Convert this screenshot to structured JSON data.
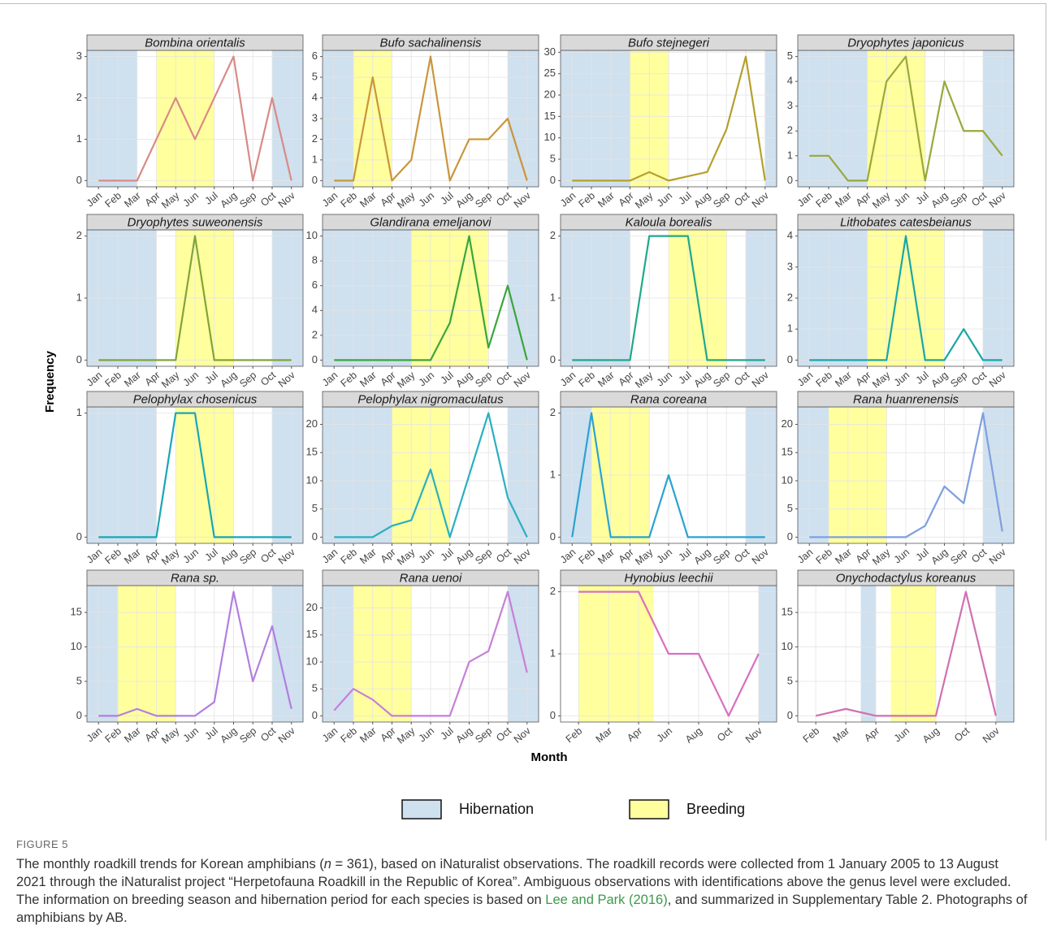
{
  "y_label": "Frequency",
  "x_label": "Month",
  "legend": [
    {
      "name": "Hibernation",
      "color": "#cfe0ef"
    },
    {
      "name": "Breeding",
      "color": "#ffff9e"
    }
  ],
  "figure_label": "FIGURE 5",
  "caption": [
    "The monthly roadkill trends for Korean amphibians (",
    "n",
    " = 361), based on iNaturalist observations. The roadkill records were collected from 1 January 2005 to 13 August 2021 through the iNaturalist project “Herpetofauna Roadkill in the Republic of Korea”. Ambiguous observations with identifications above the genus level were excluded. The information on breeding season and hibernation period for each species is based on ",
    "Lee and Park (2016)",
    ", and summarized in Supplementary Table 2. Photographs of amphibians by AB."
  ],
  "chart_data": [
    {
      "type": "line",
      "title": "Bombina orientalis",
      "categories": [
        "Jan",
        "Feb",
        "Mar",
        "Apr",
        "May",
        "Jun",
        "Jul",
        "Aug",
        "Sep",
        "Oct",
        "Nov"
      ],
      "values": [
        0,
        0,
        0,
        1,
        2,
        1,
        2,
        3,
        0,
        2,
        0
      ],
      "color": "#d98a85",
      "ylim": [
        -0.15,
        3.15
      ],
      "yticks": [
        0,
        1,
        2,
        3
      ],
      "bands": [
        [
          [
            null,
            2
          ],
          [
            9,
            null
          ]
        ],
        [
          [
            3,
            6
          ]
        ]
      ]
    },
    {
      "type": "line",
      "title": "Bufo sachalinensis",
      "categories": [
        "Jan",
        "Feb",
        "Mar",
        "Apr",
        "May",
        "Jun",
        "Jul",
        "Aug",
        "Sep",
        "Oct",
        "Nov"
      ],
      "values": [
        0,
        0,
        5,
        0,
        1,
        6,
        0,
        2,
        2,
        3,
        0
      ],
      "color": "#c9963a",
      "ylim": [
        -0.3,
        6.3
      ],
      "yticks": [
        0,
        1,
        2,
        3,
        4,
        5,
        6
      ],
      "bands": [
        [
          [
            null,
            1
          ],
          [
            9,
            null
          ]
        ],
        [
          [
            1,
            3
          ]
        ]
      ]
    },
    {
      "type": "line",
      "title": "Bufo stejnegeri",
      "categories": [
        "Jan",
        "Feb",
        "Mar",
        "Apr",
        "May",
        "Jun",
        "Jul",
        "Aug",
        "Sep",
        "Oct",
        "Nov"
      ],
      "values": [
        0,
        0,
        0,
        0,
        2,
        0,
        1,
        2,
        12,
        29,
        0
      ],
      "color": "#b5a02c",
      "ylim": [
        -1.45,
        30.45
      ],
      "yticks": [
        0,
        5,
        10,
        15,
        20,
        25,
        30
      ],
      "bands": [
        [
          [
            null,
            3
          ],
          [
            10,
            null
          ]
        ],
        [
          [
            3,
            5
          ]
        ]
      ]
    },
    {
      "type": "line",
      "title": "Dryophytes japonicus",
      "categories": [
        "Jan",
        "Feb",
        "Mar",
        "Apr",
        "May",
        "Jun",
        "Jul",
        "Aug",
        "Sep",
        "Oct",
        "Nov"
      ],
      "values": [
        1,
        1,
        0,
        0,
        4,
        5,
        0,
        4,
        2,
        2,
        1
      ],
      "color": "#9aa83a",
      "ylim": [
        -0.25,
        5.25
      ],
      "yticks": [
        0,
        1,
        2,
        3,
        4,
        5
      ],
      "bands": [
        [
          [
            null,
            3
          ],
          [
            9,
            null
          ]
        ],
        [
          [
            3,
            6
          ]
        ]
      ]
    },
    {
      "type": "line",
      "title": "Dryophytes suweonensis",
      "categories": [
        "Jan",
        "Feb",
        "Mar",
        "Apr",
        "May",
        "Jun",
        "Jul",
        "Aug",
        "Sep",
        "Oct",
        "Nov"
      ],
      "values": [
        0,
        0,
        0,
        0,
        0,
        2,
        0,
        0,
        0,
        0,
        0
      ],
      "color": "#7fa53a",
      "ylim": [
        -0.1,
        2.1
      ],
      "yticks": [
        0,
        1,
        2
      ],
      "bands": [
        [
          [
            null,
            3
          ],
          [
            9,
            null
          ]
        ],
        [
          [
            4,
            7
          ]
        ]
      ]
    },
    {
      "type": "line",
      "title": "Glandirana emeljanovi",
      "categories": [
        "Jan",
        "Feb",
        "Mar",
        "Apr",
        "May",
        "Jun",
        "Jul",
        "Aug",
        "Sep",
        "Oct",
        "Nov"
      ],
      "values": [
        0,
        0,
        0,
        0,
        0,
        0,
        3,
        10,
        1,
        6,
        0
      ],
      "color": "#3aa63a",
      "ylim": [
        -0.5,
        10.5
      ],
      "yticks": [
        0,
        2,
        4,
        6,
        8,
        10
      ],
      "bands": [
        [
          [
            null,
            4
          ],
          [
            9,
            null
          ]
        ],
        [
          [
            4,
            8
          ]
        ]
      ]
    },
    {
      "type": "line",
      "title": "Kaloula borealis",
      "categories": [
        "Jan",
        "Feb",
        "Mar",
        "Apr",
        "May",
        "Jun",
        "Jul",
        "Aug",
        "Sep",
        "Oct",
        "Nov"
      ],
      "values": [
        0,
        0,
        0,
        0,
        2,
        2,
        2,
        0,
        0,
        0,
        0
      ],
      "color": "#1fa88a",
      "ylim": [
        -0.1,
        2.1
      ],
      "yticks": [
        0,
        1,
        2
      ],
      "bands": [
        [
          [
            null,
            3
          ],
          [
            9,
            null
          ]
        ],
        [
          [
            5,
            8
          ]
        ]
      ]
    },
    {
      "type": "line",
      "title": "Lithobates catesbeianus",
      "categories": [
        "Jan",
        "Feb",
        "Mar",
        "Apr",
        "May",
        "Jun",
        "Jul",
        "Aug",
        "Sep",
        "Oct",
        "Nov"
      ],
      "values": [
        0,
        0,
        0,
        0,
        0,
        4,
        0,
        0,
        1,
        0,
        0
      ],
      "color": "#1aa6a6",
      "ylim": [
        -0.2,
        4.2
      ],
      "yticks": [
        0,
        1,
        2,
        3,
        4
      ],
      "bands": [
        [
          [
            null,
            3
          ],
          [
            9,
            null
          ]
        ],
        [
          [
            3,
            7
          ]
        ]
      ]
    },
    {
      "type": "line",
      "title": "Pelophylax chosenicus",
      "categories": [
        "Jan",
        "Feb",
        "Mar",
        "Apr",
        "May",
        "Jun",
        "Jul",
        "Aug",
        "Sep",
        "Oct",
        "Nov"
      ],
      "values": [
        0,
        0,
        0,
        0,
        1,
        1,
        0,
        0,
        0,
        0,
        0
      ],
      "color": "#1aa6b5",
      "ylim": [
        -0.05,
        1.05
      ],
      "yticks": [
        0,
        1
      ],
      "bands": [
        [
          [
            null,
            3
          ],
          [
            9,
            null
          ]
        ],
        [
          [
            4,
            7
          ]
        ]
      ]
    },
    {
      "type": "line",
      "title": "Pelophylax nigromaculatus",
      "categories": [
        "Jan",
        "Feb",
        "Mar",
        "Apr",
        "May",
        "Jun",
        "Jul",
        "Aug",
        "Sep",
        "Oct",
        "Nov"
      ],
      "values": [
        0,
        0,
        0,
        2,
        3,
        12,
        0,
        11,
        22,
        7,
        0
      ],
      "color": "#29b0c0",
      "ylim": [
        -1.1,
        23.1
      ],
      "yticks": [
        0,
        5,
        10,
        15,
        20
      ],
      "bands": [
        [
          [
            null,
            3
          ],
          [
            9,
            null
          ]
        ],
        [
          [
            3,
            6
          ]
        ]
      ]
    },
    {
      "type": "line",
      "title": "Rana coreana",
      "categories": [
        "Jan",
        "Feb",
        "Mar",
        "Apr",
        "May",
        "Jun",
        "Jul",
        "Aug",
        "Sep",
        "Oct",
        "Nov"
      ],
      "values": [
        0,
        2,
        0,
        0,
        0,
        1,
        0,
        0,
        0,
        0,
        0
      ],
      "color": "#2aa3d0",
      "ylim": [
        -0.1,
        2.1
      ],
      "yticks": [
        0,
        1,
        2
      ],
      "bands": [
        [
          [
            null,
            1
          ],
          [
            9,
            null
          ]
        ],
        [
          [
            1,
            4
          ]
        ]
      ]
    },
    {
      "type": "line",
      "title": "Rana huanrenensis",
      "categories": [
        "Jan",
        "Feb",
        "Mar",
        "Apr",
        "May",
        "Jun",
        "Jul",
        "Aug",
        "Sep",
        "Oct",
        "Nov"
      ],
      "values": [
        0,
        0,
        0,
        0,
        0,
        0,
        2,
        9,
        6,
        22,
        1
      ],
      "color": "#7f9fe0",
      "ylim": [
        -1.1,
        23.1
      ],
      "yticks": [
        0,
        5,
        10,
        15,
        20
      ],
      "bands": [
        [
          [
            null,
            1
          ],
          [
            9,
            null
          ]
        ],
        [
          [
            1,
            4
          ]
        ]
      ]
    },
    {
      "type": "line",
      "title": "Rana sp.",
      "categories": [
        "Jan",
        "Feb",
        "Mar",
        "Apr",
        "May",
        "Jun",
        "Jul",
        "Aug",
        "Sep",
        "Oct",
        "Nov"
      ],
      "values": [
        0,
        0,
        1,
        0,
        0,
        0,
        2,
        18,
        5,
        13,
        1
      ],
      "color": "#b07fe0",
      "ylim": [
        -0.9,
        18.9
      ],
      "yticks": [
        0,
        5,
        10,
        15
      ],
      "bands": [
        [
          [
            null,
            1
          ],
          [
            9,
            null
          ]
        ],
        [
          [
            1,
            4
          ]
        ]
      ]
    },
    {
      "type": "line",
      "title": "Rana uenoi",
      "categories": [
        "Jan",
        "Feb",
        "Mar",
        "Apr",
        "May",
        "Jun",
        "Jul",
        "Aug",
        "Sep",
        "Oct",
        "Nov"
      ],
      "values": [
        1,
        5,
        3,
        0,
        0,
        0,
        0,
        10,
        12,
        23,
        8
      ],
      "color": "#c77fd9",
      "ylim": [
        -1.15,
        24.15
      ],
      "yticks": [
        0,
        5,
        10,
        15,
        20
      ],
      "bands": [
        [
          [
            null,
            1
          ],
          [
            9,
            null
          ]
        ],
        [
          [
            1,
            4
          ]
        ]
      ]
    },
    {
      "type": "line",
      "title": "Hynobius leechii",
      "categories": [
        "Feb",
        "Mar",
        "Apr",
        "Jun",
        "Aug",
        "Oct",
        "Nov"
      ],
      "values": [
        2,
        2,
        2,
        1,
        1,
        0,
        1
      ],
      "color": "#d96fc0",
      "ylim": [
        -0.1,
        2.1
      ],
      "yticks": [
        0,
        1,
        2
      ],
      "bands": [
        [
          [
            6,
            null
          ]
        ],
        [
          [
            0,
            2.5
          ]
        ]
      ]
    },
    {
      "type": "line",
      "title": "Onychodactylus koreanus",
      "categories": [
        "Feb",
        "Mar",
        "Apr",
        "Jun",
        "Aug",
        "Oct",
        "Nov"
      ],
      "values": [
        0,
        1,
        0,
        0,
        0,
        18,
        0
      ],
      "color": "#d070b0",
      "ylim": [
        -0.9,
        18.9
      ],
      "yticks": [
        0,
        5,
        10,
        15
      ],
      "bands": [
        [
          [
            1.5,
            2
          ],
          [
            6,
            null
          ]
        ],
        [
          [
            2.5,
            4
          ]
        ]
      ]
    }
  ]
}
